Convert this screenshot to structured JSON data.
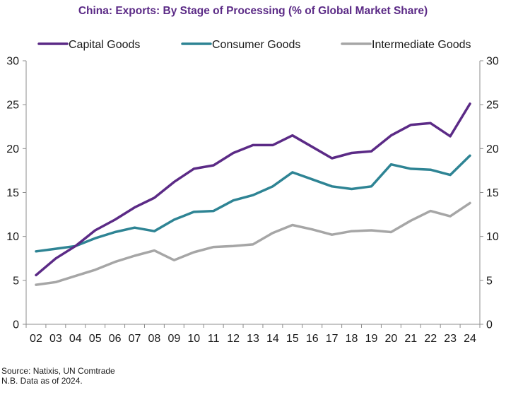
{
  "chart_data": {
    "type": "line",
    "title": "China: Exports: By Stage of Processing (% of Global Market Share)",
    "xlabel": "",
    "ylabel": "",
    "categories": [
      "02",
      "03",
      "04",
      "05",
      "06",
      "07",
      "08",
      "09",
      "10",
      "11",
      "12",
      "13",
      "14",
      "15",
      "16",
      "17",
      "18",
      "19",
      "20",
      "21",
      "22",
      "23",
      "24"
    ],
    "ylim": [
      0,
      30
    ],
    "yticks": [
      0,
      5,
      10,
      15,
      20,
      25,
      30
    ],
    "legend_position": "top",
    "grid": false,
    "series": [
      {
        "name": "Capital Goods",
        "color": "#5b2a86",
        "values": [
          5.6,
          7.5,
          8.9,
          10.7,
          11.9,
          13.3,
          14.4,
          16.2,
          17.7,
          18.1,
          19.5,
          20.4,
          20.4,
          21.5,
          20.2,
          18.9,
          19.5,
          19.7,
          21.5,
          22.7,
          22.9,
          21.4,
          25.1
        ]
      },
      {
        "name": "Consumer Goods",
        "color": "#2e8494",
        "values": [
          8.3,
          8.6,
          8.9,
          9.8,
          10.5,
          11.0,
          10.6,
          11.9,
          12.8,
          12.9,
          14.1,
          14.7,
          15.7,
          17.3,
          16.5,
          15.7,
          15.4,
          15.7,
          18.2,
          17.7,
          17.6,
          17.0,
          19.2
        ]
      },
      {
        "name": "Intermediate Goods",
        "color": "#a6a6a6",
        "values": [
          4.5,
          4.8,
          5.5,
          6.2,
          7.1,
          7.8,
          8.4,
          7.3,
          8.2,
          8.8,
          8.9,
          9.1,
          10.4,
          11.3,
          10.8,
          10.2,
          10.6,
          10.7,
          10.5,
          11.8,
          12.9,
          12.3,
          13.8
        ]
      }
    ]
  },
  "footer": {
    "source": "Source: Natixis, UN Comtrade",
    "note": "N.B. Data as of 2024."
  }
}
